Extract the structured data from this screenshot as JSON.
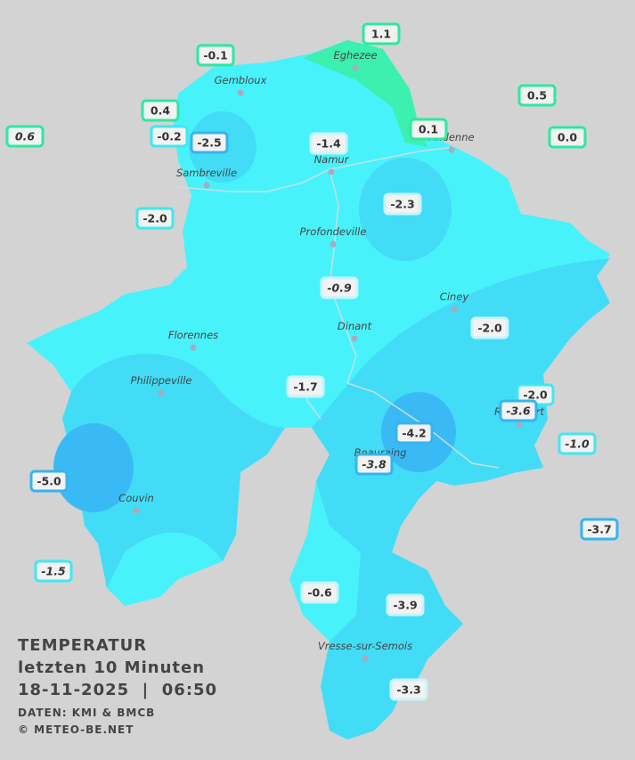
{
  "title": {
    "line1": "TEMPERATUR",
    "line2": "letzten 10 Minuten",
    "line3": "18-11-2025  |  06:50",
    "source": "DATEN: KMI & BMCB",
    "copyright": "© METEO-BE.NET"
  },
  "towns": [
    "Eghezee",
    "Gembloux",
    "Andenne",
    "Namur",
    "Sambreville",
    "Profondeville",
    "Ciney",
    "Dinant",
    "Florennes",
    "Philippeville",
    "Rochefort",
    "Beauraing",
    "Couvin",
    "Vresse-sur-Semois"
  ],
  "stations": [
    {
      "label": "1.1"
    },
    {
      "label": "-0.1"
    },
    {
      "label": "0.5"
    },
    {
      "label": "0.4"
    },
    {
      "label": "0.6",
      "italic": true
    },
    {
      "label": "-0.2"
    },
    {
      "label": "-2.5"
    },
    {
      "label": "-1.4"
    },
    {
      "label": "0.1"
    },
    {
      "label": "0.0"
    },
    {
      "label": "-2.0"
    },
    {
      "label": "-2.3"
    },
    {
      "label": "-0.9",
      "italic": true
    },
    {
      "label": "-2.0"
    },
    {
      "label": "-1.7"
    },
    {
      "label": "-2.0"
    },
    {
      "label": "-3.6",
      "italic": true
    },
    {
      "label": "-1.0",
      "italic": true
    },
    {
      "label": "-4.2"
    },
    {
      "label": "-3.8",
      "italic": true
    },
    {
      "label": "-5.0"
    },
    {
      "label": "-3.7"
    },
    {
      "label": "-1.5",
      "italic": true
    },
    {
      "label": "-0.6"
    },
    {
      "label": "-3.9"
    },
    {
      "label": "-3.3"
    }
  ]
}
